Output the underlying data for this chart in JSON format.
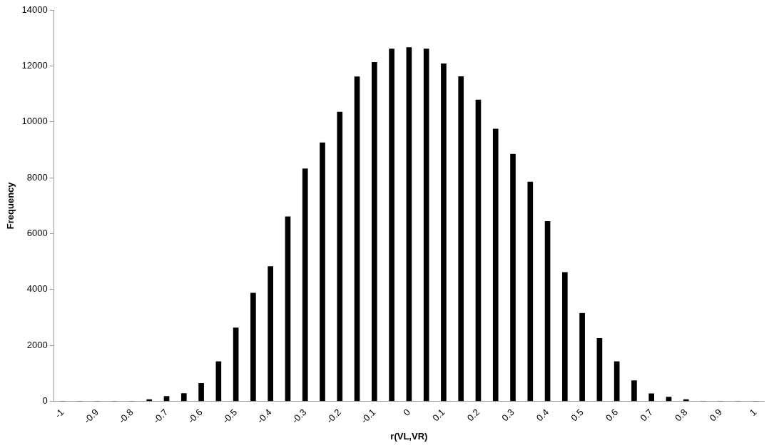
{
  "chart_data": {
    "type": "bar",
    "xlabel": "r(VL,VR)",
    "ylabel": "Frequency",
    "categories": [
      "-1",
      null,
      "-0.9",
      null,
      "-0.8",
      null,
      "-0.7",
      null,
      "-0.6",
      null,
      "-0.5",
      null,
      "-0.4",
      null,
      "-0.3",
      null,
      "-0.2",
      null,
      "-0.1",
      null,
      "0",
      null,
      "0.1",
      null,
      "0.2",
      null,
      "0.3",
      null,
      "0.4",
      null,
      "0.5",
      null,
      "0.6",
      null,
      "0.7",
      null,
      "0.8",
      null,
      "0.9",
      null,
      "1"
    ],
    "values": [
      0,
      0,
      0,
      0,
      0,
      60,
      180,
      280,
      640,
      1420,
      2630,
      3870,
      4820,
      6600,
      8320,
      9250,
      10350,
      11610,
      12130,
      12610,
      12660,
      12610,
      12080,
      11620,
      10780,
      9740,
      8840,
      7850,
      6440,
      4610,
      3150,
      2250,
      1420,
      740,
      270,
      155,
      60,
      0,
      0,
      0,
      0
    ],
    "color": "#000000",
    "ylim": [
      0,
      14000
    ],
    "yticks": [
      0,
      2000,
      4000,
      6000,
      8000,
      10000,
      12000,
      14000
    ],
    "grid": false,
    "legend": false
  }
}
